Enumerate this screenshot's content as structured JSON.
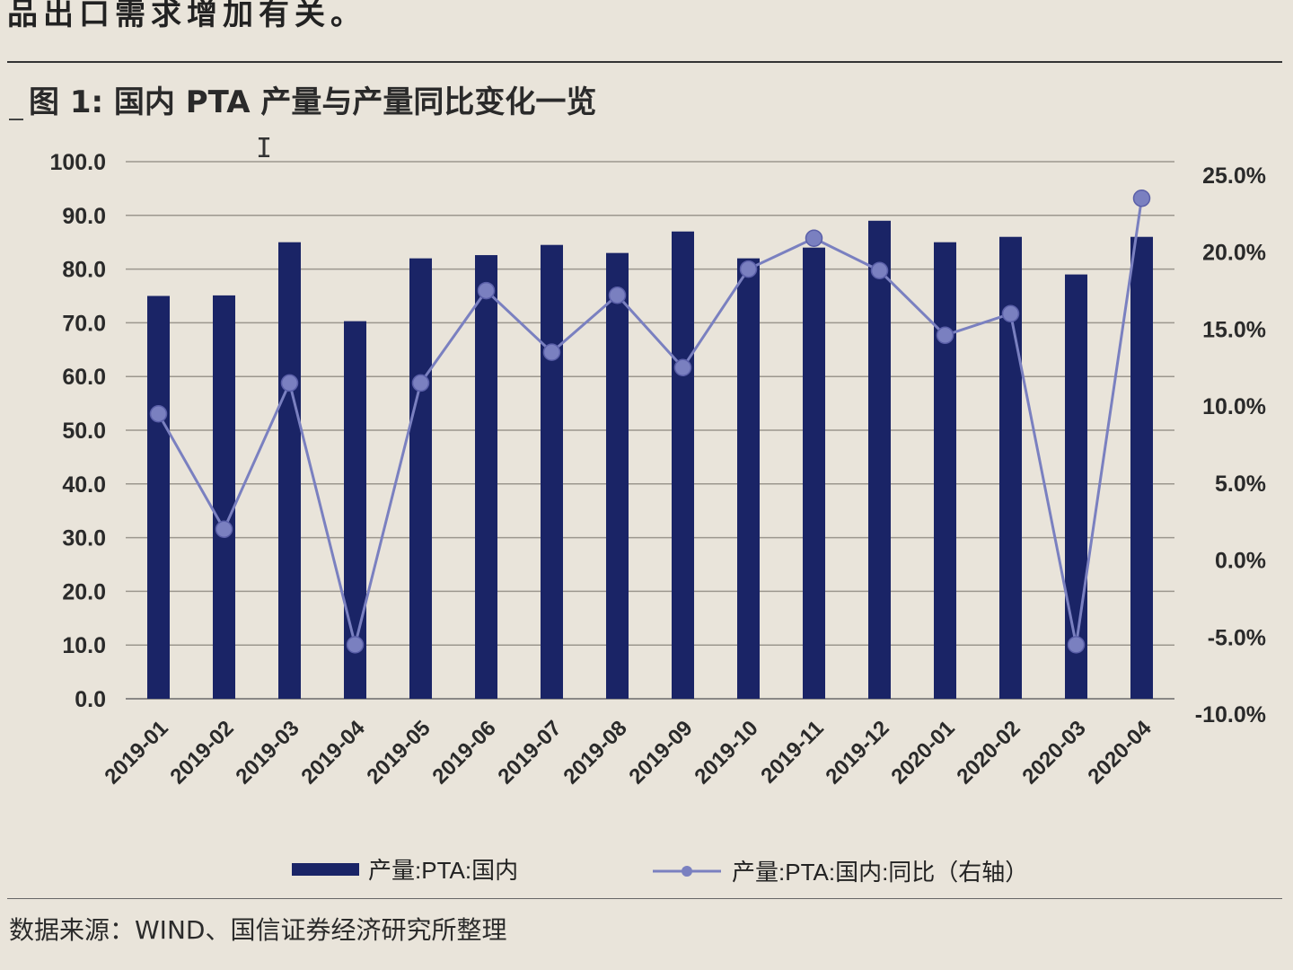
{
  "intro_text": "品出口需求增加有关。",
  "figure_title": "图 1: 国内 PTA 产量与产量同比变化一览",
  "source": "数据来源：WIND、国信证券经济研究所整理",
  "chart_data": {
    "type": "bar",
    "categories": [
      "2019-01",
      "2019-02",
      "2019-03",
      "2019-04",
      "2019-05",
      "2019-06",
      "2019-07",
      "2019-08",
      "2019-09",
      "2019-10",
      "2019-11",
      "2019-12",
      "2020-01",
      "2020-02",
      "2020-03",
      "2020-04"
    ],
    "series": [
      {
        "name": "产量:PTA:国内",
        "type": "bar",
        "axis": "left",
        "color": "#1a2466",
        "values": [
          75.0,
          75.1,
          85.0,
          70.3,
          82.0,
          82.6,
          84.5,
          83.0,
          87.0,
          82.0,
          84.0,
          89.0,
          85.0,
          86.0,
          79.0,
          86.0
        ]
      },
      {
        "name": "产量:PTA:国内:同比（右轴）",
        "type": "line",
        "axis": "right",
        "color": "#7a80c0",
        "values": [
          9.5,
          2.0,
          11.5,
          -5.5,
          11.5,
          17.5,
          13.5,
          17.2,
          12.5,
          18.9,
          20.9,
          18.8,
          14.6,
          16.0,
          -5.5,
          23.5
        ]
      }
    ],
    "y_left": {
      "min": 0,
      "max": 100,
      "step": 10,
      "tick_labels": [
        "0.0",
        "10.0",
        "20.0",
        "30.0",
        "40.0",
        "50.0",
        "60.0",
        "70.0",
        "80.0",
        "90.0",
        "100.0"
      ]
    },
    "y_right": {
      "min": -10,
      "max": 25,
      "step": 5,
      "tick_labels": [
        "-10.0%",
        "-5.0%",
        "0.0%",
        "5.0%",
        "10.0%",
        "15.0%",
        "20.0%",
        "25.0%"
      ]
    },
    "grid": true,
    "legend": "bottom",
    "legend_labels": [
      "产量:PTA:国内",
      "产量:PTA:国内:同比（右轴）"
    ]
  }
}
